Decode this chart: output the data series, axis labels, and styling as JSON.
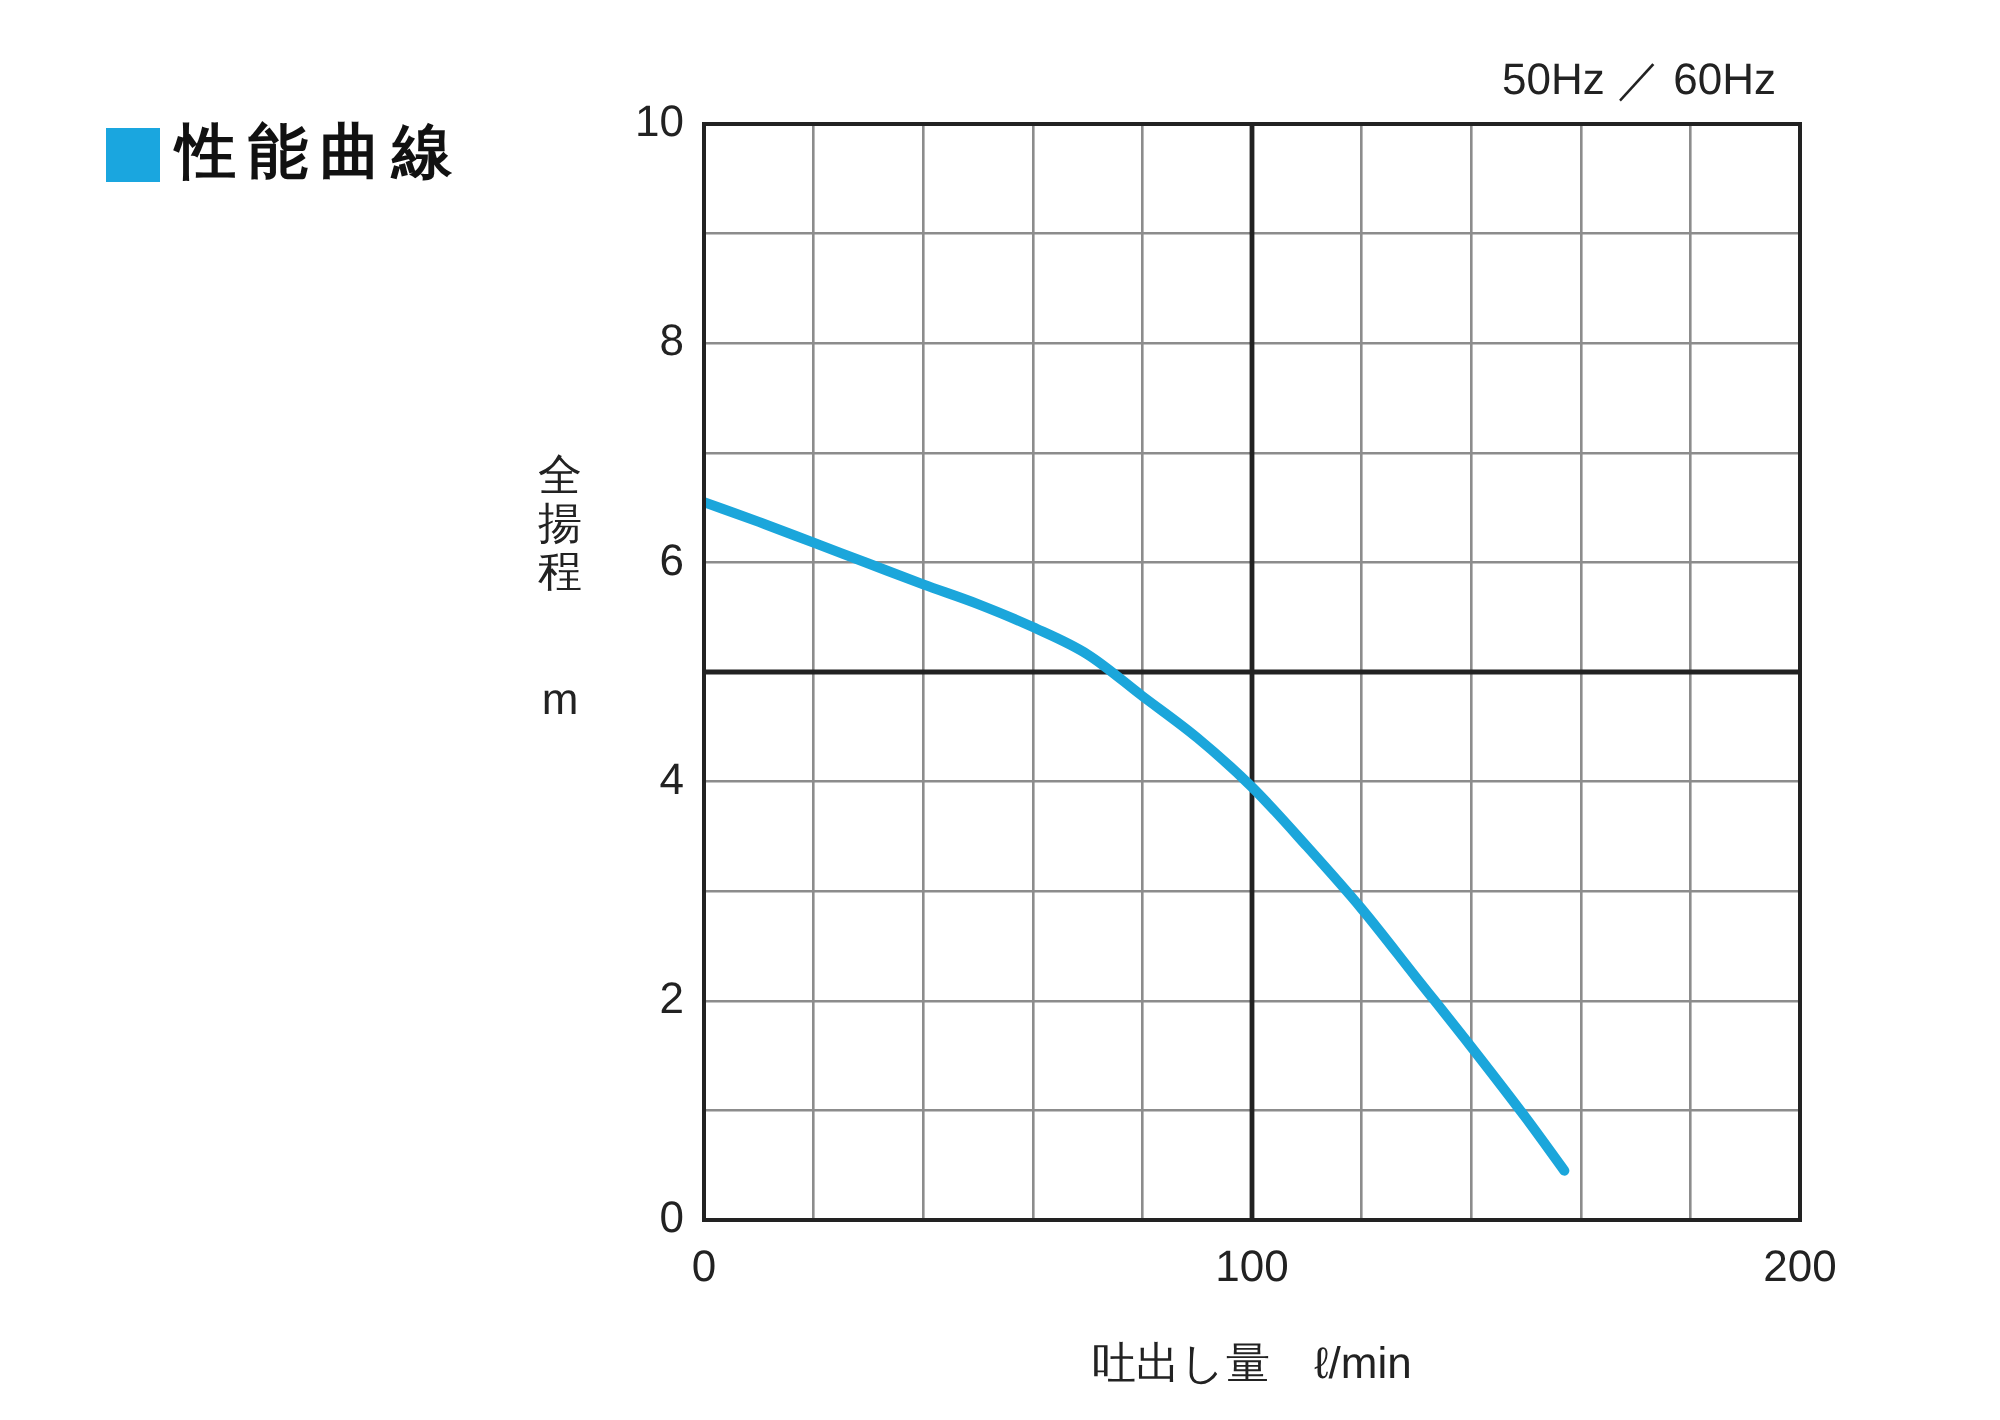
{
  "chart_data": {
    "type": "line",
    "title": "性能曲線",
    "subtitle": "50Hz ／ 60Hz",
    "xlabel": "吐出し量　ℓ/min",
    "ylabel": "全揚程 m",
    "x": [
      0,
      10,
      20,
      30,
      40,
      50,
      60,
      70,
      80,
      90,
      100,
      110,
      120,
      130,
      140,
      150,
      157
    ],
    "series": [
      {
        "color": "#1ba6db",
        "values": [
          6.55,
          6.37,
          6.18,
          5.99,
          5.8,
          5.62,
          5.41,
          5.16,
          4.78,
          4.4,
          3.95,
          3.41,
          2.84,
          2.21,
          1.58,
          0.93,
          0.45
        ]
      }
    ],
    "xlim": [
      0,
      200
    ],
    "xticks": [
      0,
      {
        "value": 20,
        "label": null
      },
      {
        "value": 40,
        "label": null
      },
      {
        "value": 60,
        "label": null
      },
      {
        "value": 80,
        "label": null
      },
      100,
      {
        "value": 120,
        "label": null
      },
      {
        "value": 140,
        "label": null
      },
      {
        "value": 160,
        "label": null
      },
      {
        "value": 180,
        "label": null
      },
      200
    ],
    "ylim": [
      0,
      10
    ],
    "yticks": [
      0,
      {
        "value": 1,
        "label": null
      },
      2,
      {
        "value": 3,
        "label": null
      },
      4,
      6,
      {
        "value": 7,
        "label": null
      },
      8,
      {
        "value": 9,
        "label": null
      },
      10
    ],
    "ref_lines": [
      {
        "axis": "x",
        "value": 100,
        "color": "#222222"
      },
      {
        "axis": "y",
        "value": 5,
        "color": "#222222"
      }
    ],
    "grid": true,
    "marker": "none",
    "line_style": "solid"
  }
}
